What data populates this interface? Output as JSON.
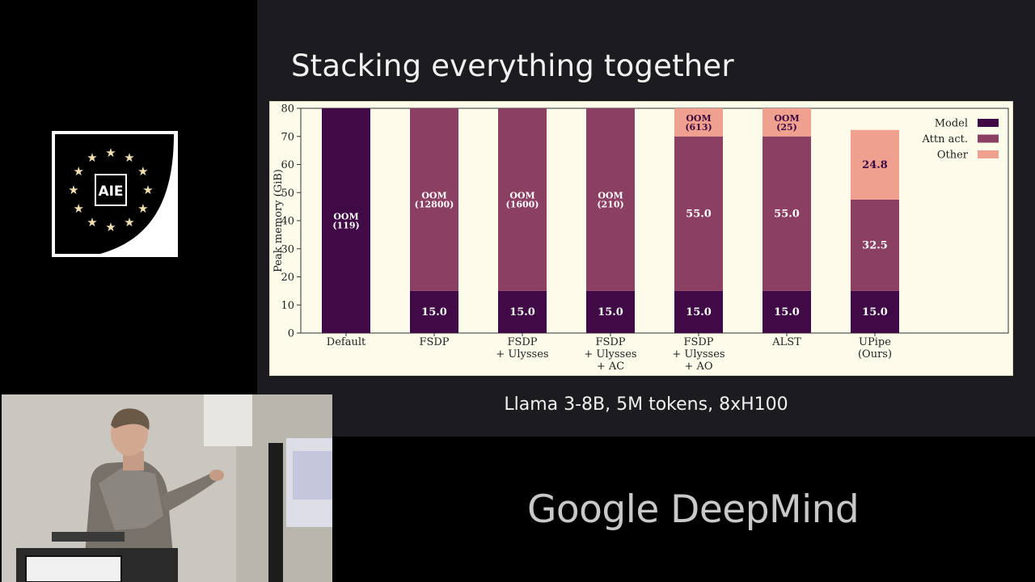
{
  "slide": {
    "title": "Stacking everything together",
    "caption": "Llama 3-8B, 5M tokens, 8xH100"
  },
  "logo": {
    "text": "AIE",
    "star_color": "#f2e0b0"
  },
  "brand": {
    "name": "Google DeepMind"
  },
  "colors": {
    "model": "#3f0a45",
    "attn": "#8b3f63",
    "other": "#efa08f"
  },
  "chart_data": {
    "type": "bar",
    "stacked": true,
    "ylabel": "Peak memory (GiB)",
    "ylim": [
      0,
      80
    ],
    "yticks": [
      0,
      10,
      20,
      30,
      40,
      50,
      60,
      70,
      80
    ],
    "categories": [
      [
        "Default"
      ],
      [
        "FSDP"
      ],
      [
        "FSDP",
        "+ Ulysses"
      ],
      [
        "FSDP",
        "+ Ulysses",
        "+ AC"
      ],
      [
        "FSDP",
        "+ Ulysses",
        "+ AO"
      ],
      [
        "ALST"
      ],
      [
        "UPipe",
        "(Ours)"
      ]
    ],
    "series": [
      {
        "name": "Model",
        "values": [
          80,
          15,
          15,
          15,
          15,
          15,
          15
        ]
      },
      {
        "name": "Attn act.",
        "values": [
          0,
          65,
          65,
          65,
          55,
          55,
          32.5
        ]
      },
      {
        "name": "Other",
        "values": [
          0,
          0,
          0,
          0,
          10,
          10,
          24.8
        ]
      }
    ],
    "labels": [
      [
        [
          "OOM",
          "(119)"
        ],
        [],
        []
      ],
      [
        [
          "15.0"
        ],
        [
          "OOM",
          "(12800)"
        ],
        []
      ],
      [
        [
          "15.0"
        ],
        [
          "OOM",
          "(1600)"
        ],
        []
      ],
      [
        [
          "15.0"
        ],
        [
          "OOM",
          "(210)"
        ],
        []
      ],
      [
        [
          "15.0"
        ],
        [
          "55.0"
        ],
        [
          "OOM",
          "(613)"
        ]
      ],
      [
        [
          "15.0"
        ],
        [
          "55.0"
        ],
        [
          "OOM",
          "(25)"
        ]
      ],
      [
        [
          "15.0"
        ],
        [
          "32.5"
        ],
        [
          "24.8"
        ]
      ]
    ],
    "legend_position": "top-right",
    "grid": false
  }
}
